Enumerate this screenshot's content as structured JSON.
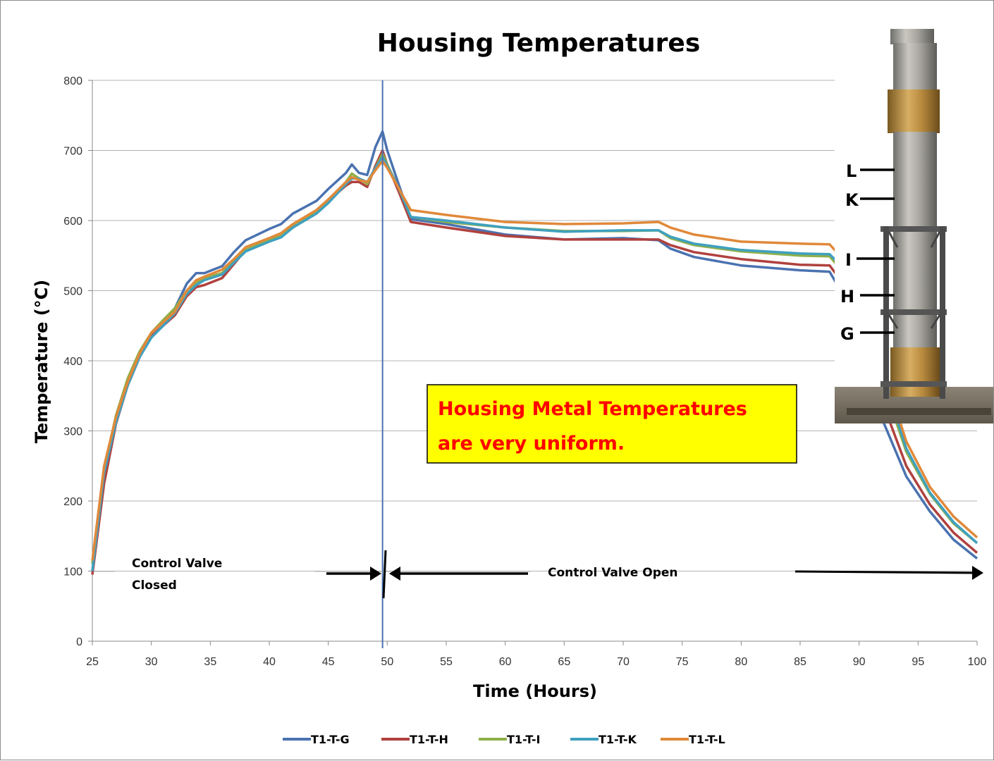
{
  "colors": {
    "T1-T-G": "#4a72b0",
    "T1-T-H": "#b0413e",
    "T1-T-I": "#8fb04a",
    "T1-T-K": "#3fa0bf",
    "T1-T-L": "#e0893a",
    "gridline": "#b4b4b4",
    "callout_fill": "#ffff00",
    "callout_text": "#ff0000",
    "vertical_marker": "#4a72b0"
  },
  "chart_data": {
    "type": "line",
    "title": "Housing Temperatures",
    "xlabel": "Time (Hours)",
    "ylabel": "Temperature (°C)",
    "xlim": [
      25,
      100
    ],
    "ylim": [
      0,
      800
    ],
    "xticks": [
      25,
      30,
      35,
      40,
      45,
      50,
      55,
      60,
      65,
      70,
      75,
      80,
      85,
      90,
      95,
      100
    ],
    "yticks": [
      0,
      100,
      200,
      300,
      400,
      500,
      600,
      700,
      800
    ],
    "grid": "horizontal",
    "legend_position": "bottom",
    "vertical_marker_x": 49.6,
    "series": [
      {
        "name": "T1-T-G",
        "color_key": "T1-T-G",
        "x": [
          25,
          26,
          27,
          28,
          29,
          30,
          31,
          32,
          33,
          33.8,
          34.5,
          36,
          37,
          38,
          40,
          41,
          42,
          44,
          45,
          46.5,
          47,
          47.6,
          48.3,
          49,
          49.6,
          50,
          51,
          52,
          55,
          60,
          65,
          70,
          73,
          74,
          76,
          80,
          85,
          87.5,
          90,
          92,
          94,
          96,
          98,
          100
        ],
        "y": [
          100,
          235,
          315,
          365,
          405,
          440,
          455,
          475,
          510,
          525,
          525,
          535,
          555,
          572,
          588,
          595,
          610,
          628,
          645,
          668,
          680,
          668,
          665,
          705,
          727,
          700,
          650,
          602,
          595,
          580,
          573,
          575,
          572,
          560,
          548,
          536,
          529,
          527,
          455,
          315,
          235,
          185,
          145,
          118
        ]
      },
      {
        "name": "T1-T-H",
        "color_key": "T1-T-H",
        "x": [
          25,
          26,
          27,
          28,
          29,
          30,
          31,
          32,
          33,
          33.8,
          34.5,
          36,
          37,
          38,
          40,
          41,
          42,
          44,
          45,
          46.5,
          47,
          47.6,
          48.3,
          49,
          49.6,
          50,
          51,
          52,
          55,
          60,
          65,
          70,
          73,
          74,
          76,
          80,
          85,
          87.5,
          90,
          92,
          94,
          96,
          98,
          100
        ],
        "y": [
          95,
          225,
          310,
          365,
          405,
          435,
          450,
          465,
          492,
          505,
          508,
          518,
          538,
          558,
          572,
          578,
          590,
          612,
          628,
          650,
          655,
          655,
          648,
          678,
          700,
          680,
          640,
          598,
          590,
          578,
          573,
          573,
          573,
          565,
          555,
          545,
          537,
          536,
          480,
          340,
          250,
          195,
          155,
          126
        ]
      },
      {
        "name": "T1-T-I",
        "color_key": "T1-T-I",
        "x": [
          25,
          26,
          27,
          28,
          29,
          30,
          31,
          32,
          33,
          33.8,
          34.5,
          36,
          37,
          38,
          40,
          41,
          42,
          44,
          45,
          46.5,
          47,
          47.6,
          48.3,
          49,
          49.6,
          50,
          51,
          52,
          55,
          60,
          65,
          70,
          73,
          74,
          76,
          80,
          85,
          87.5,
          90,
          92,
          94,
          96,
          98,
          100
        ],
        "y": [
          110,
          245,
          322,
          375,
          413,
          440,
          458,
          475,
          500,
          512,
          518,
          525,
          542,
          558,
          572,
          578,
          592,
          612,
          628,
          655,
          667,
          660,
          652,
          675,
          695,
          680,
          645,
          605,
          598,
          590,
          585,
          585,
          586,
          575,
          565,
          556,
          550,
          549,
          500,
          370,
          270,
          210,
          168,
          140
        ]
      },
      {
        "name": "T1-T-K",
        "color_key": "T1-T-K",
        "x": [
          25,
          26,
          27,
          28,
          29,
          30,
          31,
          32,
          33,
          33.8,
          34.5,
          36,
          37,
          38,
          40,
          41,
          42,
          44,
          45,
          46.5,
          47,
          47.6,
          48.3,
          49,
          49.6,
          50,
          51,
          52,
          55,
          60,
          65,
          70,
          73,
          74,
          76,
          80,
          85,
          87.5,
          90,
          92,
          94,
          96,
          98,
          100
        ],
        "y": [
          100,
          240,
          312,
          365,
          405,
          433,
          450,
          468,
          495,
          508,
          515,
          523,
          540,
          556,
          570,
          576,
          590,
          610,
          625,
          652,
          660,
          660,
          655,
          675,
          690,
          678,
          645,
          605,
          600,
          590,
          584,
          586,
          586,
          577,
          567,
          558,
          553,
          552,
          510,
          380,
          275,
          212,
          170,
          140
        ]
      },
      {
        "name": "T1-T-L",
        "color_key": "T1-T-L",
        "x": [
          25,
          26,
          27,
          28,
          29,
          30,
          31,
          32,
          33,
          33.8,
          34.5,
          36,
          37,
          38,
          40,
          41,
          42,
          44,
          45,
          46.5,
          47,
          47.6,
          48.3,
          49,
          49.6,
          50,
          51,
          52,
          55,
          60,
          65,
          70,
          73,
          74,
          76,
          80,
          85,
          87.5,
          90,
          92,
          94,
          96,
          98,
          100
        ],
        "y": [
          115,
          250,
          320,
          370,
          410,
          440,
          455,
          470,
          500,
          515,
          520,
          530,
          545,
          562,
          575,
          582,
          595,
          615,
          630,
          655,
          662,
          658,
          655,
          672,
          685,
          675,
          645,
          615,
          608,
          598,
          595,
          596,
          598,
          590,
          580,
          570,
          567,
          566,
          520,
          390,
          285,
          220,
          178,
          148
        ]
      }
    ],
    "annotations": {
      "closed_line1": "Control Valve",
      "closed_line2": "Closed",
      "open": "Control Valve Open"
    },
    "callout": {
      "line1": "Housing Metal Temperatures",
      "line2": "are very uniform."
    }
  },
  "photo": {
    "labels": [
      "L",
      "K",
      "I",
      "H",
      "G"
    ]
  }
}
